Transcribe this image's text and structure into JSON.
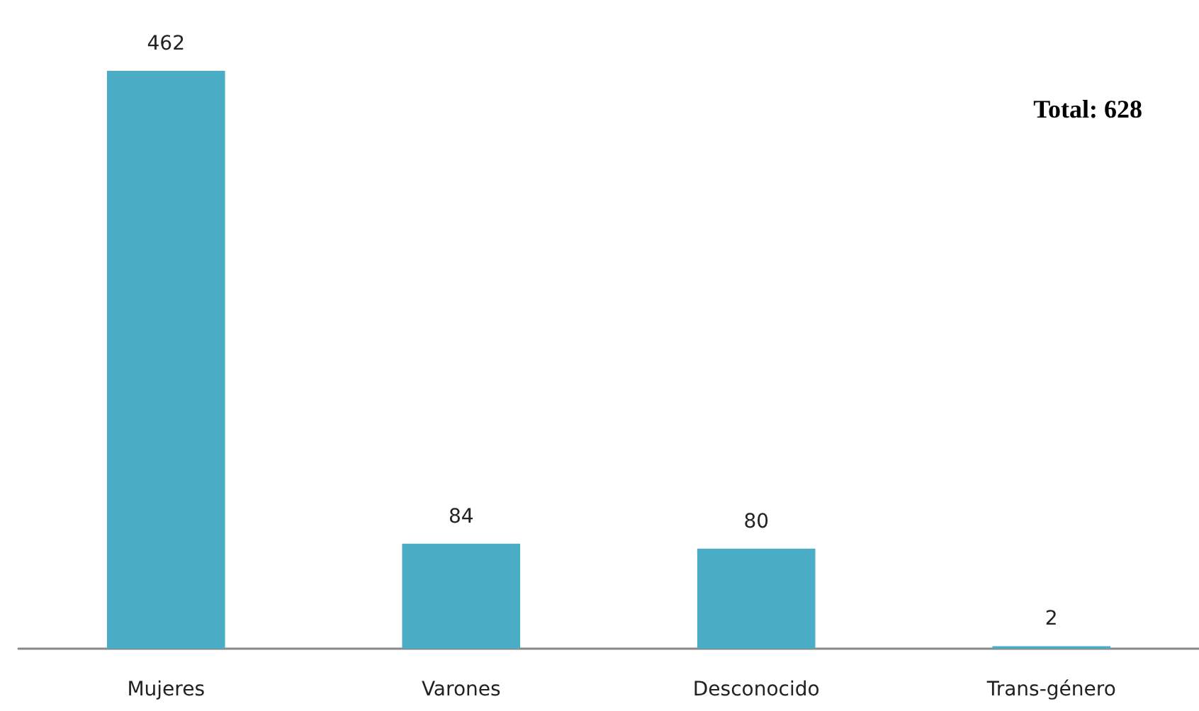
{
  "chart_data": {
    "type": "bar",
    "categories": [
      "Mujeres",
      "Varones",
      "Desconocido",
      "Trans-género"
    ],
    "values": [
      462,
      84,
      80,
      2
    ],
    "color": "#4bacc6",
    "data_labels": true,
    "annotations": [
      "Total: 628"
    ]
  }
}
